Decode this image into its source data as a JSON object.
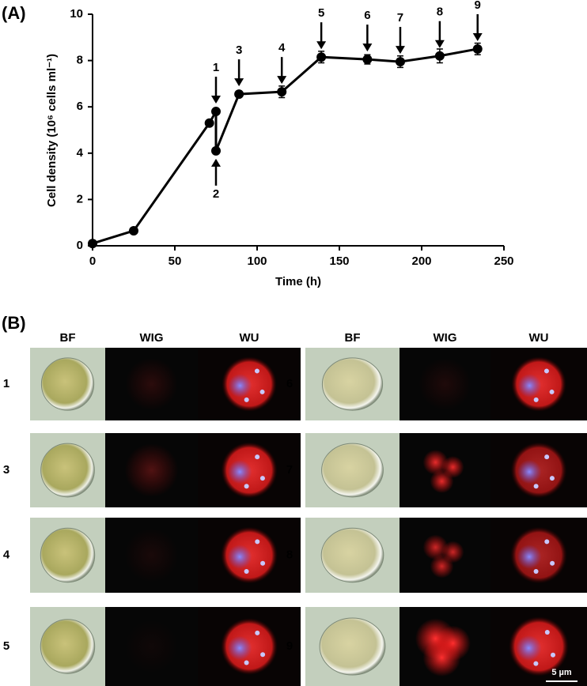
{
  "panel_a": {
    "label": "(A)"
  },
  "chart_data": {
    "type": "line",
    "x_label": "Time (h)",
    "y_label": "Cell density (10⁶ cells ml⁻¹)",
    "x": [
      0,
      25,
      71,
      75,
      75,
      89,
      115,
      139,
      167,
      187,
      211,
      234
    ],
    "values": [
      0.1,
      0.65,
      5.3,
      5.8,
      4.1,
      6.55,
      6.65,
      8.15,
      8.05,
      7.95,
      8.2,
      8.5
    ],
    "errors": [
      0.05,
      0.05,
      0.1,
      0.1,
      0.1,
      0.1,
      0.25,
      0.25,
      0.2,
      0.25,
      0.3,
      0.25
    ],
    "color": "#000000",
    "xlim": [
      0,
      250
    ],
    "ylim": [
      0,
      10
    ],
    "xticks": [
      0,
      50,
      100,
      150,
      200,
      250
    ],
    "yticks": [
      0,
      2,
      4,
      6,
      8,
      10
    ],
    "annotations": [
      {
        "text": "1",
        "x": 75,
        "y": 5.8,
        "direction": "down"
      },
      {
        "text": "2",
        "x": 75,
        "y": 4.1,
        "direction": "up"
      },
      {
        "text": "3",
        "x": 89,
        "y": 6.55,
        "direction": "down"
      },
      {
        "text": "4",
        "x": 115,
        "y": 6.65,
        "direction": "down"
      },
      {
        "text": "5",
        "x": 139,
        "y": 8.15,
        "direction": "down"
      },
      {
        "text": "6",
        "x": 167,
        "y": 8.05,
        "direction": "down"
      },
      {
        "text": "7",
        "x": 187,
        "y": 7.95,
        "direction": "down"
      },
      {
        "text": "8",
        "x": 211,
        "y": 8.2,
        "direction": "down"
      },
      {
        "text": "9",
        "x": 234,
        "y": 8.5,
        "direction": "down"
      }
    ]
  },
  "panel_b": {
    "label": "(B)",
    "column_headers": [
      "BF",
      "WIG",
      "WU"
    ],
    "left_rows": [
      "1",
      "3",
      "4",
      "5"
    ],
    "right_rows": [
      "6",
      "7",
      "8",
      "9"
    ],
    "scale_bar": "5 µm"
  }
}
